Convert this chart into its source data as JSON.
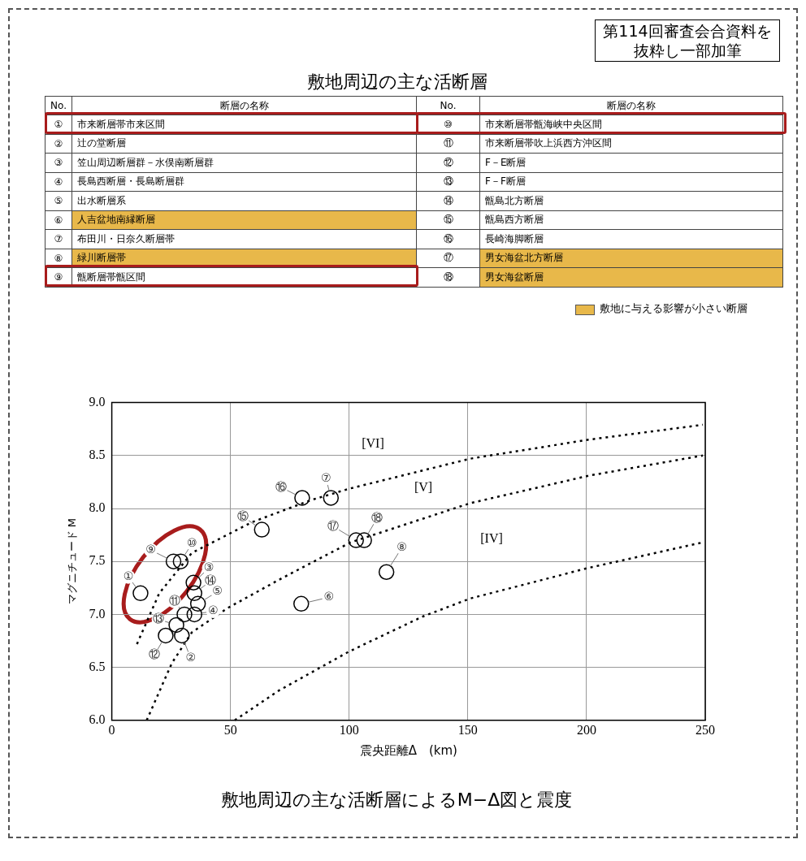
{
  "chart_data": [
    {
      "type": "other",
      "title": "敷地周辺の主な活断層",
      "annotations": [
        "第114回審査会合資料を抜粋し一部加筆",
        "No.",
        "断層の名称",
        "敷地に与える影響が小さい断層"
      ],
      "categories": [
        "市来断層帯市来区間",
        "辻の堂断層",
        "笠山周辺断層群－水俣南断層群",
        "長島西断層・長島断層群",
        "出水断層系",
        "人吉盆地南縁断層",
        "布田川・日奈久断層帯",
        "緑川断層帯",
        "甑断層帯甑区間",
        "市来断層帯甑海峡中央区間",
        "市来断層帯吹上浜西方沖区間",
        "F－E断層",
        "F－F断層",
        "甑島北方断層",
        "甑島西方断層",
        "長崎海脚断層",
        "男女海盆北方断層",
        "男女海盆断層"
      ],
      "value_labels": [
        "①",
        "②",
        "③",
        "④",
        "⑤",
        "⑥",
        "⑦",
        "⑧",
        "⑨",
        "⑩",
        "⑪",
        "⑫",
        "⑬",
        "⑭",
        "⑮",
        "⑯",
        "⑰",
        "⑱"
      ],
      "colors": [
        "#ffffff",
        "#ffffff",
        "#ffffff",
        "#ffffff",
        "#ffffff",
        "#e8b84a",
        "#ffffff",
        "#e8b84a",
        "#ffffff",
        "#ffffff",
        "#ffffff",
        "#ffffff",
        "#ffffff",
        "#ffffff",
        "#ffffff",
        "#ffffff",
        "#e8b84a",
        "#e8b84a"
      ],
      "color": "#e8b84a"
    },
    {
      "type": "scatter",
      "title": "敷地周辺の主な活断層によるM−Δ図と震度",
      "xlabel": "震央距離Δ　(km)",
      "ylabel": "マグニチュード M",
      "xlim": [
        0,
        250
      ],
      "xticks": [
        0,
        50,
        100,
        150,
        200,
        250
      ],
      "ylim": [
        6,
        9
      ],
      "yticks": [
        {
          "value": 6,
          "label": "6.0"
        },
        {
          "value": 6.5,
          "label": "6.5"
        },
        {
          "value": 7,
          "label": "7.0"
        },
        {
          "value": 7.5,
          "label": "7.5"
        },
        {
          "value": 8,
          "label": "8.0"
        },
        {
          "value": 8.5,
          "label": "8.5"
        },
        {
          "value": 9,
          "label": "9.0"
        }
      ],
      "grid": true,
      "marker": "circle",
      "series": [
        {
          "type": "scatter",
          "color": "#000000",
          "x": [
            12.1,
            29.5,
            34.4,
            34.8,
            36.3,
            79.8,
            92.3,
            115.7,
            26,
            29,
            30.6,
            22.7,
            27.2,
            34.8,
            63.2,
            80.2,
            102.9,
            106.3
          ],
          "values": [
            7.2,
            6.8,
            7.3,
            7.0,
            7.1,
            7.1,
            8.1,
            7.4,
            7.5,
            7.5,
            7.0,
            6.8,
            6.9,
            7.2,
            7.8,
            8.1,
            7.7,
            7.7
          ],
          "value_labels": [
            "①",
            "②",
            "③",
            "④",
            "⑤",
            "⑥",
            "⑦",
            "⑧",
            "⑨",
            "⑩",
            "⑪",
            "⑫",
            "⑬",
            "⑭",
            "⑮",
            "⑯",
            "⑰",
            "⑱"
          ]
        },
        {
          "type": "line",
          "color": "#000000",
          "line_style": "dotted",
          "marker": "none",
          "x": [
            10.6,
            20,
            33.7,
            59,
            84,
            100.6,
            151,
            201,
            249
          ],
          "values": [
            6.72,
            7.2,
            7.58,
            7.87,
            8.08,
            8.19,
            8.47,
            8.65,
            8.79
          ]
        },
        {
          "type": "line",
          "color": "#000000",
          "line_style": "dotted",
          "marker": "none",
          "x": [
            14.7,
            25.3,
            33.7,
            48.8,
            71.5,
            100.6,
            151,
            201,
            249
          ],
          "values": [
            6.0,
            6.54,
            6.83,
            7.06,
            7.34,
            7.68,
            8.05,
            8.31,
            8.5
          ]
        },
        {
          "type": "line",
          "color": "#000000",
          "line_style": "dotted",
          "marker": "none",
          "x": [
            51.8,
            70.3,
            100,
            131,
            151,
            201,
            249
          ],
          "values": [
            6.0,
            6.28,
            6.65,
            6.98,
            7.15,
            7.44,
            7.68
          ]
        }
      ],
      "annotations": [
        "[VI]",
        "[V]",
        "[IV]"
      ]
    }
  ]
}
